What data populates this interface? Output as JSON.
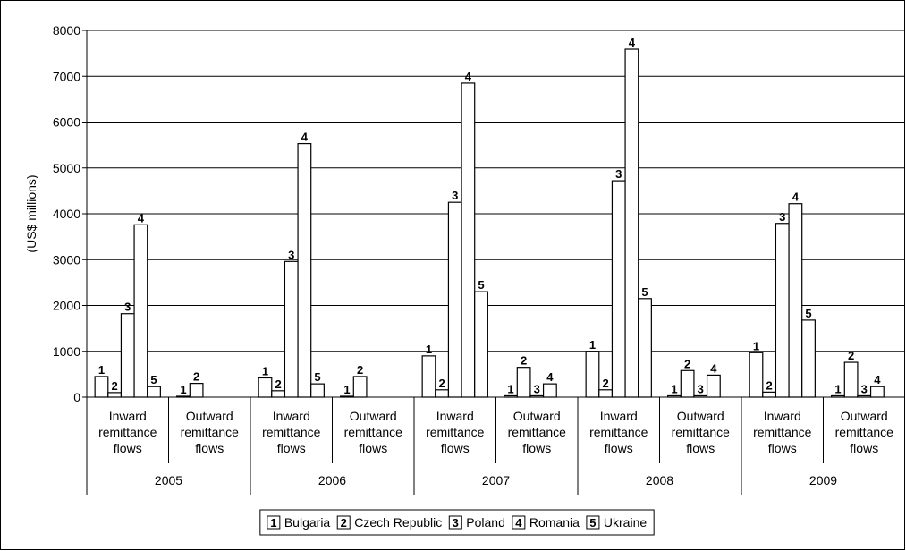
{
  "chart_data": {
    "type": "bar",
    "y_label": "(US$ millions)",
    "groups": [
      "2005",
      "2006",
      "2007",
      "2008",
      "2009"
    ],
    "categories": [
      "Inward remittance flows",
      "Outward remittance flows",
      "Inward remittance flows",
      "Outward remittance flows",
      "Inward remittance flows",
      "Outward remittance flows",
      "Inward remittance flows",
      "Outward remittance flows",
      "Inward remittance flows",
      "Outward remittance flows"
    ],
    "series": [
      {
        "name": "Bulgaria",
        "marker": "1",
        "color": "#ffffff",
        "values": [
          450,
          20,
          420,
          20,
          900,
          30,
          1000,
          30,
          970,
          30
        ]
      },
      {
        "name": "Czech Republic",
        "marker": "2",
        "color": "#ffffff",
        "values": [
          100,
          300,
          140,
          450,
          160,
          650,
          160,
          580,
          110,
          760
        ]
      },
      {
        "name": "Poland",
        "marker": "3",
        "color": "#ffffff",
        "values": [
          1820,
          null,
          2960,
          null,
          4250,
          30,
          4720,
          30,
          3790,
          30
        ]
      },
      {
        "name": "Romania",
        "marker": "4",
        "color": "#ffffff",
        "values": [
          3760,
          null,
          5530,
          null,
          6850,
          290,
          7590,
          480,
          4220,
          230
        ]
      },
      {
        "name": "Ukraine",
        "marker": "5",
        "color": "#ffffff",
        "values": [
          230,
          null,
          290,
          null,
          2300,
          null,
          2150,
          null,
          1680,
          null
        ]
      }
    ],
    "ylim": [
      0,
      8000
    ],
    "yticks": [
      0,
      1000,
      2000,
      3000,
      4000,
      5000,
      6000,
      7000,
      8000
    ],
    "grid": true
  }
}
